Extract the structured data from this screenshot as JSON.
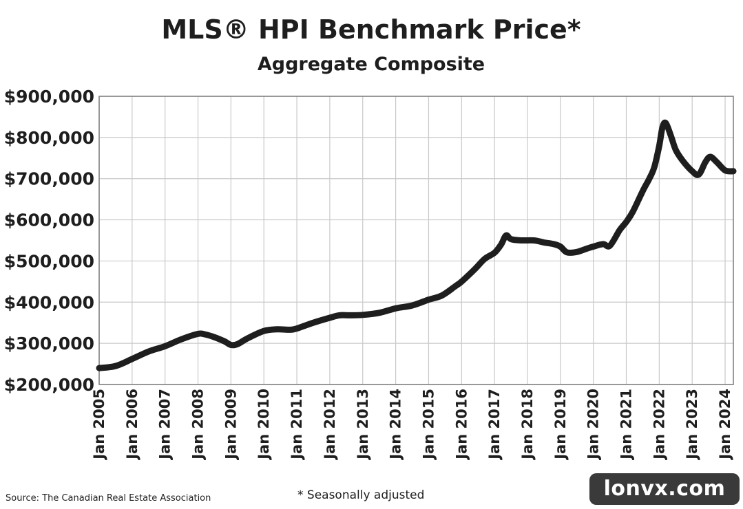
{
  "chart_data": {
    "type": "line",
    "title": "MLS® HPI Benchmark Price*",
    "subtitle": "Aggregate Composite",
    "xlabel": "",
    "ylabel": "",
    "ylim": [
      200000,
      900000
    ],
    "xlim": [
      2005.0,
      2024.25
    ],
    "grid": true,
    "y_ticks": [
      200000,
      300000,
      400000,
      500000,
      600000,
      700000,
      800000,
      900000
    ],
    "y_tick_labels": [
      "$200,000",
      "$300,000",
      "$400,000",
      "$500,000",
      "$600,000",
      "$700,000",
      "$800,000",
      "$900,000"
    ],
    "x_ticks": [
      2005,
      2006,
      2007,
      2008,
      2009,
      2010,
      2011,
      2012,
      2013,
      2014,
      2015,
      2016,
      2017,
      2018,
      2019,
      2020,
      2021,
      2022,
      2023,
      2024
    ],
    "x_tick_labels": [
      "Jan 2005",
      "Jan 2006",
      "Jan 2007",
      "Jan 2008",
      "Jan 2009",
      "Jan 2010",
      "Jan 2011",
      "Jan 2012",
      "Jan 2013",
      "Jan 2014",
      "Jan 2015",
      "Jan 2016",
      "Jan 2017",
      "Jan 2018",
      "Jan 2019",
      "Jan 2020",
      "Jan 2021",
      "Jan 2022",
      "Jan 2023",
      "Jan 2024"
    ],
    "series": [
      {
        "color": "#1e1e1e",
        "x": [
          2005.0,
          2005.5,
          2006.0,
          2006.5,
          2007.0,
          2007.5,
          2008.0,
          2008.2,
          2008.5,
          2008.8,
          2009.0,
          2009.2,
          2009.5,
          2010.0,
          2010.4,
          2010.8,
          2011.0,
          2011.5,
          2012.0,
          2012.3,
          2012.6,
          2013.0,
          2013.5,
          2014.0,
          2014.5,
          2015.0,
          2015.4,
          2015.8,
          2016.0,
          2016.4,
          2016.7,
          2017.0,
          2017.2,
          2017.35,
          2017.5,
          2017.8,
          2018.2,
          2018.5,
          2018.8,
          2019.0,
          2019.2,
          2019.5,
          2019.8,
          2020.0,
          2020.3,
          2020.5,
          2020.8,
          2021.0,
          2021.2,
          2021.5,
          2021.7,
          2021.85,
          2022.0,
          2022.1,
          2022.2,
          2022.35,
          2022.5,
          2022.7,
          2023.0,
          2023.2,
          2023.4,
          2023.55,
          2023.75,
          2024.0,
          2024.25
        ],
        "values": [
          240000,
          245000,
          262000,
          280000,
          293000,
          310000,
          323000,
          322000,
          315000,
          305000,
          296000,
          298000,
          312000,
          330000,
          334000,
          333000,
          336000,
          350000,
          362000,
          368000,
          368000,
          369000,
          374000,
          385000,
          392000,
          406000,
          416000,
          438000,
          450000,
          480000,
          505000,
          520000,
          540000,
          562000,
          553000,
          550000,
          550000,
          545000,
          541000,
          535000,
          521000,
          522000,
          530000,
          535000,
          541000,
          537000,
          575000,
          595000,
          620000,
          670000,
          700000,
          728000,
          780000,
          825000,
          835000,
          805000,
          770000,
          745000,
          718000,
          710000,
          740000,
          753000,
          740000,
          720000,
          718000
        ]
      }
    ],
    "footnote": "* Seasonally adjusted",
    "source": "Source: The Canadian Real Estate Association",
    "watermark": "lonvx.com"
  }
}
